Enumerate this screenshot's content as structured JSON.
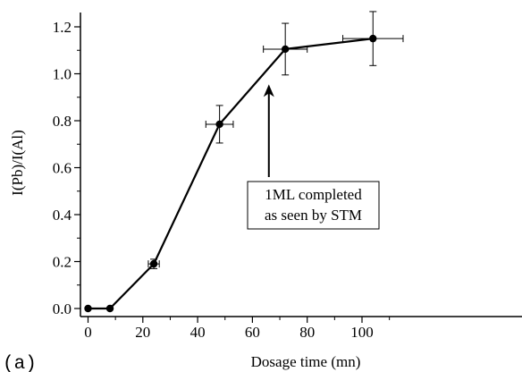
{
  "panel_label": "(a)",
  "annotation": {
    "line1": "1ML completed",
    "line2": "as seen by STM"
  },
  "chart_data": {
    "type": "line",
    "title": "",
    "xlabel": "Dosage time (mn)",
    "ylabel": "I(Pb)/I(Al)",
    "xlim": [
      -2,
      115
    ],
    "ylim": [
      -0.03,
      1.27
    ],
    "xticks": [
      0,
      20,
      40,
      60,
      80,
      100
    ],
    "yticks": [
      0.0,
      0.2,
      0.4,
      0.6,
      0.8,
      1.0,
      1.2
    ],
    "xtick_labels": [
      "0",
      "20",
      "40",
      "60",
      "80",
      "100"
    ],
    "ytick_labels": [
      "0.0",
      "0.2",
      "0.4",
      "0.6",
      "0.8",
      "1.0",
      "1.2"
    ],
    "grid": false,
    "series": [
      {
        "x": [
          0,
          8,
          24,
          48,
          72,
          104
        ],
        "y": [
          0.0,
          0.0,
          0.19,
          0.785,
          1.105,
          1.15
        ],
        "x_err": [
          0,
          0,
          2,
          5,
          8,
          11
        ],
        "y_err": [
          0,
          0,
          0.02,
          0.08,
          0.11,
          0.115
        ]
      }
    ],
    "arrow": {
      "x": 66,
      "y_from": 0.56,
      "y_to": 0.955
    }
  }
}
